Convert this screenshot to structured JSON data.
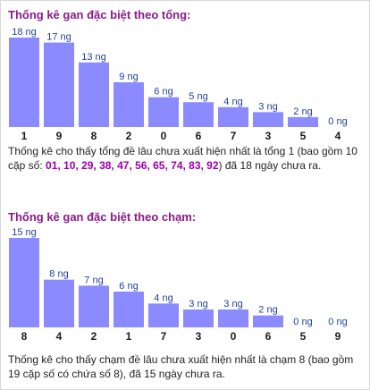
{
  "colors": {
    "bar": "#8b8bff",
    "value_label": "#1f3f9f",
    "category": "#1a1a1a",
    "title": "#8b1a8b",
    "highlight": "#9900aa"
  },
  "panels": [
    {
      "title": "Thống kê gan đặc biệt theo tổng:",
      "caption_before": "Thống kê cho thấy tổng đề lâu chưa xuất hiện nhất là tổng 1 (bao gồm 10 cặp số: ",
      "caption_highlight": "01, 10, 29, 38, 47, 56, 65, 74, 83, 92",
      "caption_after": ") đã 18 ngày chưa ra."
    },
    {
      "title": "Thống kê gan đặc biệt theo chạm:",
      "caption_before": "Thống kê cho thấy chạm đề lâu chưa xuất hiện nhất là chạm 8 (bao gồm 19 cặp số có chứa số 8), đã 15 ngày chưa ra.",
      "caption_highlight": "",
      "caption_after": ""
    }
  ],
  "chart_data": [
    {
      "type": "bar",
      "categories": [
        "1",
        "9",
        "8",
        "2",
        "0",
        "6",
        "7",
        "3",
        "5",
        "4"
      ],
      "values": [
        18,
        17,
        13,
        9,
        6,
        5,
        4,
        3,
        2,
        0
      ],
      "value_labels": [
        "18 ng",
        "17 ng",
        "13 ng",
        "9 ng",
        "6 ng",
        "5 ng",
        "4 ng",
        "3 ng",
        "2 ng",
        "0 ng"
      ],
      "ylim": [
        0,
        18
      ]
    },
    {
      "type": "bar",
      "categories": [
        "8",
        "4",
        "2",
        "1",
        "7",
        "3",
        "0",
        "6",
        "5",
        "9"
      ],
      "values": [
        15,
        8,
        7,
        6,
        4,
        3,
        3,
        2,
        0,
        0
      ],
      "value_labels": [
        "15 ng",
        "8 ng",
        "7 ng",
        "6 ng",
        "4 ng",
        "3 ng",
        "3 ng",
        "2 ng",
        "0 ng",
        "0 ng"
      ],
      "ylim": [
        0,
        15
      ]
    }
  ]
}
